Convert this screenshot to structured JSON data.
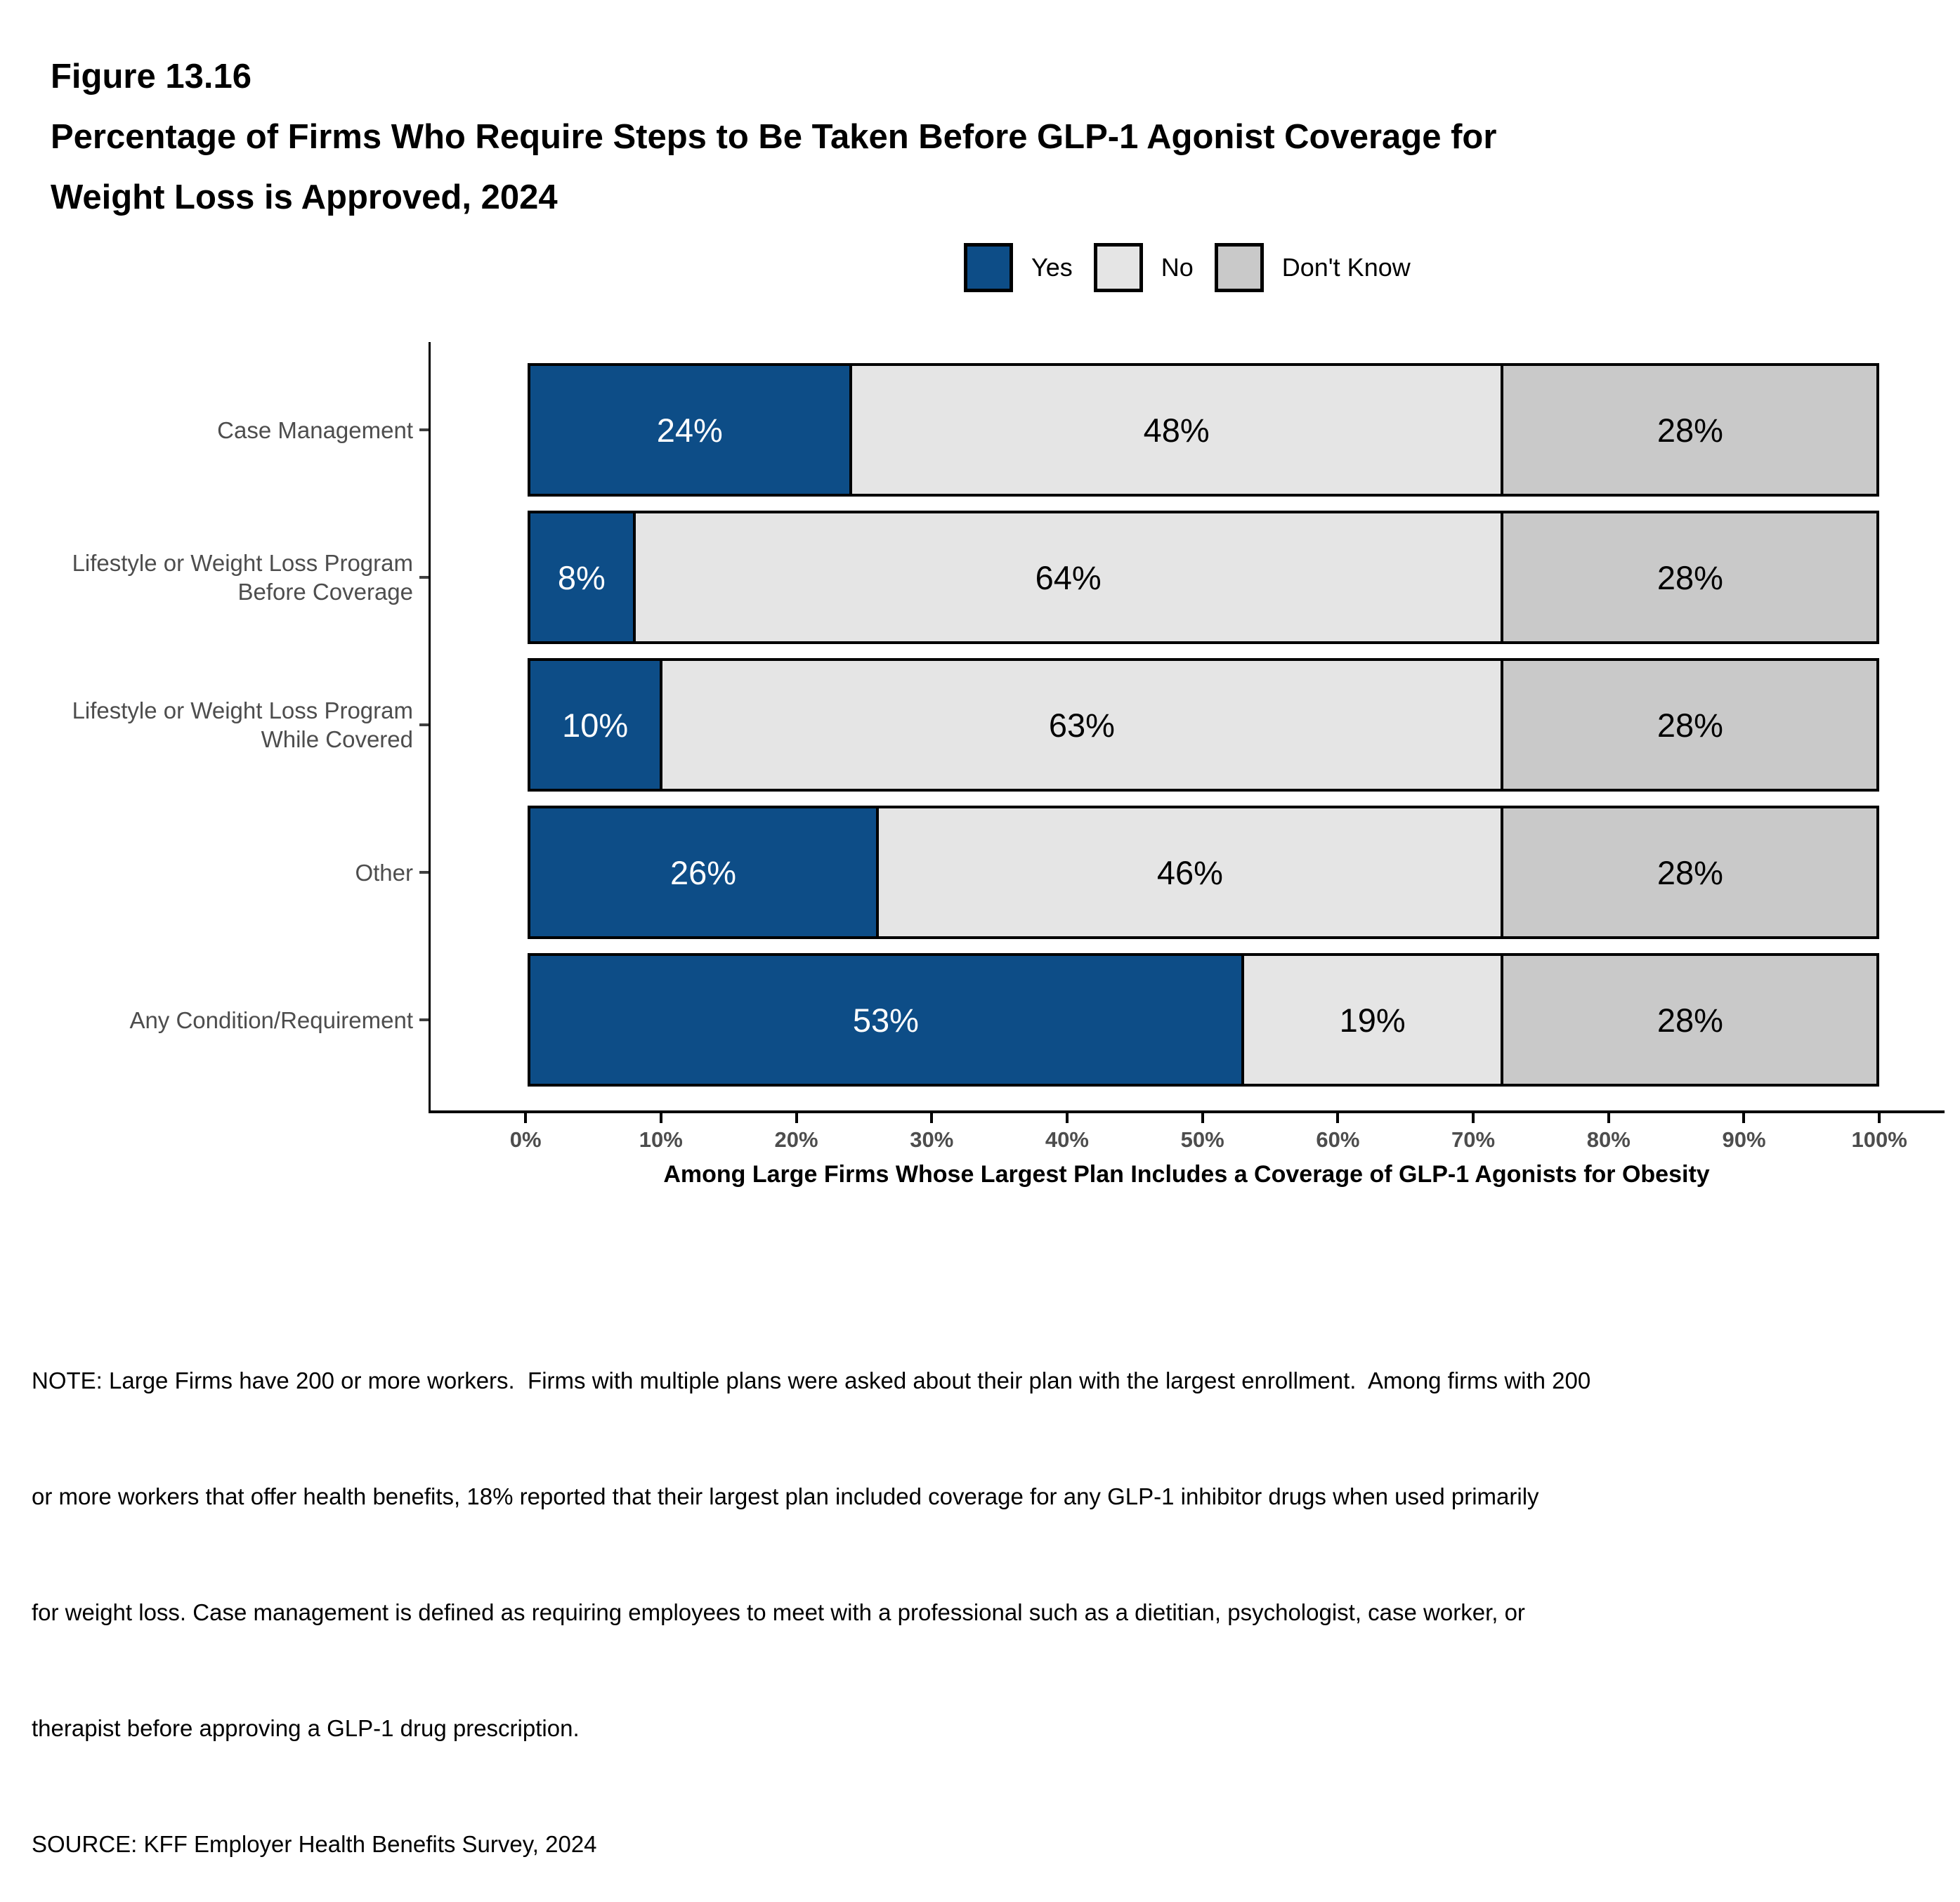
{
  "header": {
    "figure_label": "Figure 13.16",
    "title_lines": [
      "Percentage of Firms Who Require Steps to Be Taken Before GLP-1 Agonist Coverage for",
      "Weight Loss is Approved, 2024"
    ]
  },
  "legend": {
    "items": [
      {
        "label": "Yes",
        "color": "#0d4d87"
      },
      {
        "label": "No",
        "color": "#e5e5e5"
      },
      {
        "label": "Don't Know",
        "color": "#c9c9c9"
      }
    ]
  },
  "chart_data": {
    "type": "bar",
    "orientation": "horizontal",
    "stacked": true,
    "title": "Percentage of Firms Who Require Steps to Be Taken Before GLP-1 Agonist Coverage for Weight Loss is Approved, 2024",
    "categories": [
      "Case Management",
      "Lifestyle or Weight Loss Program\nBefore Coverage",
      "Lifestyle or Weight Loss Program\nWhile Covered",
      "Other",
      "Any Condition/Requirement"
    ],
    "series": [
      {
        "name": "Yes",
        "color": "#0d4d87",
        "label_color": "#ffffff",
        "values": [
          24,
          8,
          10,
          26,
          53
        ]
      },
      {
        "name": "No",
        "color": "#e5e5e5",
        "label_color": "#000000",
        "values": [
          48,
          64,
          63,
          46,
          19
        ]
      },
      {
        "name": "Don't Know",
        "color": "#c9c9c9",
        "label_color": "#000000",
        "values": [
          28,
          28,
          28,
          28,
          28
        ]
      }
    ],
    "value_suffix": "%",
    "xlim": [
      0,
      100
    ],
    "x_ticks": [
      "0%",
      "10%",
      "20%",
      "30%",
      "40%",
      "50%",
      "60%",
      "70%",
      "80%",
      "90%",
      "100%"
    ],
    "xlabel": "Among Large Firms Whose Largest Plan Includes a Coverage of GLP-1 Agonists for Obesity",
    "legend_position": "top",
    "grid": false,
    "axis_color": "#000000",
    "tick_label_color": "#4d4d4d",
    "category_label_color": "#4d4d4d"
  },
  "footer": {
    "note_lines": [
      "NOTE: Large Firms have 200 or more workers.  Firms with multiple plans were asked about their plan with the largest enrollment.  Among firms with 200",
      "or more workers that offer health benefits, 18% reported that their largest plan included coverage for any GLP-1 inhibitor drugs when used primarily",
      "for weight loss. Case management is defined as requiring employees to meet with a professional such as a dietitian, psychologist, case worker, or",
      "therapist before approving a GLP-1 drug prescription."
    ],
    "source": "SOURCE: KFF Employer Health Benefits Survey, 2024"
  }
}
